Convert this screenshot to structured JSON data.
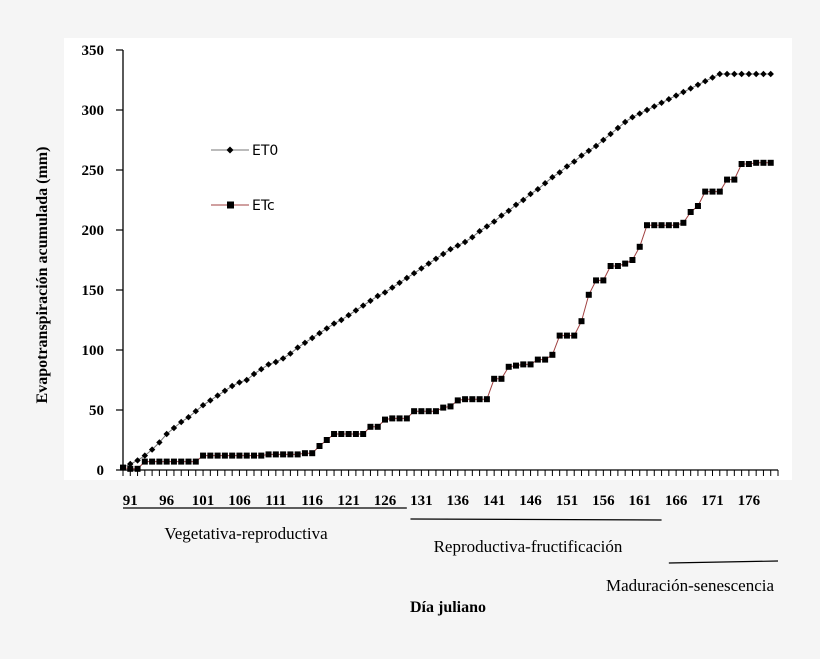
{
  "chart_data": {
    "type": "line",
    "title": "",
    "xlabel": "Día juliano",
    "ylabel": "Evapotranspiración acumulada (mm)",
    "xlim": [
      90,
      180
    ],
    "ylim": [
      0,
      350
    ],
    "yticks": [
      0,
      50,
      100,
      150,
      200,
      250,
      300,
      350
    ],
    "xticks": [
      91,
      96,
      101,
      106,
      111,
      116,
      121,
      126,
      131,
      136,
      141,
      146,
      151,
      156,
      161,
      166,
      171,
      176
    ],
    "legend_position": "upper-left",
    "series": [
      {
        "name": "ET0",
        "color": "#777777",
        "marker": "diamond",
        "x": [
          90,
          91,
          92,
          93,
          94,
          95,
          96,
          97,
          98,
          99,
          100,
          101,
          102,
          103,
          104,
          105,
          106,
          107,
          108,
          109,
          110,
          111,
          112,
          113,
          114,
          115,
          116,
          117,
          118,
          119,
          120,
          121,
          122,
          123,
          124,
          125,
          126,
          127,
          128,
          129,
          130,
          131,
          132,
          133,
          134,
          135,
          136,
          137,
          138,
          139,
          140,
          141,
          142,
          143,
          144,
          145,
          146,
          147,
          148,
          149,
          150,
          151,
          152,
          153,
          154,
          155,
          156,
          157,
          158,
          159,
          160,
          161,
          162,
          163,
          164,
          165,
          166,
          167,
          168,
          169,
          170,
          171,
          172,
          173,
          174,
          175,
          176,
          177,
          178,
          179
        ],
        "values": [
          2,
          5,
          8,
          12,
          17,
          23,
          30,
          35,
          40,
          44,
          49,
          54,
          58,
          62,
          66,
          70,
          73,
          75,
          80,
          84,
          88,
          90,
          93,
          97,
          102,
          106,
          110,
          114,
          118,
          122,
          125,
          129,
          133,
          137,
          141,
          145,
          148,
          152,
          156,
          160,
          164,
          168,
          172,
          176,
          180,
          184,
          187,
          190,
          194,
          199,
          203,
          207,
          212,
          216,
          221,
          225,
          230,
          234,
          239,
          244,
          248,
          253,
          257,
          262,
          266,
          270,
          275,
          280,
          285,
          290,
          294,
          297,
          300,
          303,
          306,
          309,
          312,
          315,
          318,
          321,
          324,
          327,
          330,
          330,
          330,
          330,
          330,
          330,
          330,
          330
        ]
      },
      {
        "name": "ETc",
        "color": "#a04040",
        "marker": "square",
        "x": [
          90,
          91,
          92,
          93,
          94,
          95,
          96,
          97,
          98,
          99,
          100,
          101,
          102,
          103,
          104,
          105,
          106,
          107,
          108,
          109,
          110,
          111,
          112,
          113,
          114,
          115,
          116,
          117,
          118,
          119,
          120,
          121,
          122,
          123,
          124,
          125,
          126,
          127,
          128,
          129,
          130,
          131,
          132,
          133,
          134,
          135,
          136,
          137,
          138,
          139,
          140,
          141,
          142,
          143,
          144,
          145,
          146,
          147,
          148,
          149,
          150,
          151,
          152,
          153,
          154,
          155,
          156,
          157,
          158,
          159,
          160,
          161,
          162,
          163,
          164,
          165,
          166,
          167,
          168,
          169,
          170,
          171,
          172,
          173,
          174,
          175,
          176,
          177,
          178,
          179
        ],
        "values": [
          2,
          1,
          1,
          7,
          7,
          7,
          7,
          7,
          7,
          7,
          7,
          12,
          12,
          12,
          12,
          12,
          12,
          12,
          12,
          12,
          13,
          13,
          13,
          13,
          13,
          14,
          14,
          20,
          25,
          30,
          30,
          30,
          30,
          30,
          36,
          36,
          42,
          43,
          43,
          43,
          49,
          49,
          49,
          49,
          52,
          53,
          58,
          59,
          59,
          59,
          59,
          76,
          76,
          86,
          87,
          88,
          88,
          92,
          92,
          96,
          112,
          112,
          112,
          124,
          146,
          158,
          158,
          170,
          170,
          172,
          175,
          186,
          204,
          204,
          204,
          204,
          204,
          206,
          215,
          220,
          232,
          232,
          232,
          242,
          242,
          255,
          255,
          256,
          256,
          256
        ]
      }
    ],
    "phases": [
      {
        "label": "Vegetativa-reproductiva",
        "x_start": 90,
        "x_end": 129
      },
      {
        "label": "Reproductiva-fructificación",
        "x_start": 129.5,
        "x_end": 164
      },
      {
        "label": "Maduración-senescencia",
        "x_start": 165,
        "x_end": 180
      }
    ]
  }
}
